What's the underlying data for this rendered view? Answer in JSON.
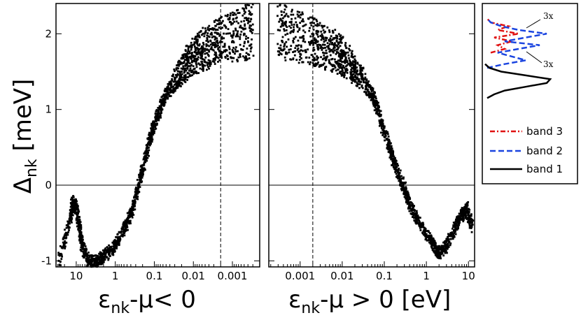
{
  "chart_data": [
    {
      "type": "scatter",
      "panel": "left",
      "x_scale": "log",
      "x_reversed": true,
      "xlim": [
        33,
        0.0002
      ],
      "ylim": [
        -1.08,
        2.4
      ],
      "x_ticks": [
        10,
        1,
        0.1,
        0.01,
        0.001
      ],
      "x_tick_labels": [
        "10",
        "1",
        "0.1",
        "0.01",
        "0.001"
      ],
      "y_ticks": [
        -1,
        0,
        1,
        2
      ],
      "y_tick_labels": [
        "-1",
        "0",
        "1",
        "2"
      ],
      "ylabel_main": "Δ",
      "ylabel_sub": "nk",
      "ylabel_unit": " [meV]",
      "xlabel_main": "ε",
      "xlabel_sub": "nk",
      "xlabel_rest": "-μ< 0",
      "hline_y": 0,
      "vline_x": 0.002,
      "series": [
        {
          "points": [
            [
              28,
              -1.0
            ],
            [
              14,
              -0.45
            ],
            [
              12,
              -0.2
            ],
            [
              10,
              -0.3
            ],
            [
              8,
              -0.6
            ],
            [
              7,
              -0.8
            ],
            [
              5,
              -1.0
            ],
            [
              3,
              -1.0
            ],
            [
              2,
              -0.95
            ],
            [
              1.2,
              -0.85
            ],
            [
              0.8,
              -0.7
            ],
            [
              0.5,
              -0.5
            ],
            [
              0.35,
              -0.3
            ],
            [
              0.25,
              0.0
            ],
            [
              0.18,
              0.3
            ],
            [
              0.13,
              0.6
            ],
            [
              0.1,
              0.8
            ],
            [
              0.07,
              1.0
            ],
            [
              0.05,
              1.2
            ],
            [
              0.03,
              1.4
            ],
            [
              0.02,
              1.5
            ],
            [
              0.015,
              1.6
            ],
            [
              0.01,
              1.7
            ],
            [
              0.007,
              1.75
            ],
            [
              0.005,
              1.8
            ],
            [
              0.003,
              1.85
            ],
            [
              0.002,
              1.9
            ],
            [
              0.001,
              1.95
            ],
            [
              0.0005,
              2.0
            ],
            [
              0.0003,
              2.05
            ]
          ]
        }
      ]
    },
    {
      "type": "scatter",
      "panel": "right",
      "x_scale": "log",
      "xlim": [
        0.00018,
        14
      ],
      "ylim": [
        -1.08,
        2.4
      ],
      "x_ticks": [
        0.001,
        0.01,
        0.1,
        1,
        10
      ],
      "x_tick_labels": [
        "0.001",
        "0.01",
        "0.1",
        "1",
        "10"
      ],
      "xlabel_main": "ε",
      "xlabel_sub": "nk",
      "xlabel_rest": "-μ > 0  [eV]",
      "hline_y": 0,
      "vline_x": 0.002,
      "series": [
        {
          "points": [
            [
              0.0003,
              2.05
            ],
            [
              0.0005,
              2.0
            ],
            [
              0.001,
              1.95
            ],
            [
              0.002,
              1.9
            ],
            [
              0.003,
              1.85
            ],
            [
              0.005,
              1.8
            ],
            [
              0.008,
              1.75
            ],
            [
              0.01,
              1.7
            ],
            [
              0.015,
              1.6
            ],
            [
              0.02,
              1.5
            ],
            [
              0.03,
              1.4
            ],
            [
              0.05,
              1.2
            ],
            [
              0.07,
              1.0
            ],
            [
              0.1,
              0.7
            ],
            [
              0.15,
              0.4
            ],
            [
              0.2,
              0.2
            ],
            [
              0.3,
              -0.05
            ],
            [
              0.4,
              -0.25
            ],
            [
              0.6,
              -0.45
            ],
            [
              1,
              -0.65
            ],
            [
              1.5,
              -0.8
            ],
            [
              2,
              -0.9
            ],
            [
              3,
              -0.8
            ],
            [
              5,
              -0.55
            ],
            [
              7,
              -0.4
            ],
            [
              9,
              -0.3
            ],
            [
              12,
              -0.55
            ]
          ]
        }
      ]
    },
    {
      "type": "line",
      "panel": "side",
      "description_hidden": true,
      "annotations": [
        "3x",
        "3x"
      ],
      "legend": [
        "band 3",
        "band 2",
        "band 1"
      ],
      "series": [
        {
          "name": "band 3",
          "color": "#e01010",
          "dash": "dashdot",
          "y": [
            1.75,
            1.8,
            1.85,
            1.9,
            1.95,
            2.0,
            2.05,
            2.1,
            2.15,
            2.2
          ],
          "x": [
            0.1,
            0.3,
            0.2,
            0.4,
            0.15,
            0.5,
            0.2,
            0.35,
            0.1,
            0.05
          ]
        },
        {
          "name": "band 2",
          "color": "#1a44e0",
          "dash": "dashed",
          "y": [
            1.55,
            1.6,
            1.65,
            1.7,
            1.75,
            1.8,
            1.85,
            1.9,
            1.95,
            2.0,
            2.05,
            2.1,
            2.15,
            2.2
          ],
          "x": [
            0.05,
            0.3,
            0.6,
            0.4,
            0.2,
            0.5,
            0.8,
            0.3,
            0.6,
            0.9,
            0.5,
            0.25,
            0.1,
            0.05
          ]
        },
        {
          "name": "band 1",
          "color": "#000000",
          "dash": "solid",
          "y": [
            1.15,
            1.2,
            1.25,
            1.3,
            1.35,
            1.4,
            1.45,
            1.5,
            1.55,
            1.6
          ],
          "x": [
            0.05,
            0.15,
            0.3,
            0.6,
            0.9,
            0.95,
            0.6,
            0.25,
            0.08,
            0.02
          ]
        }
      ]
    }
  ]
}
